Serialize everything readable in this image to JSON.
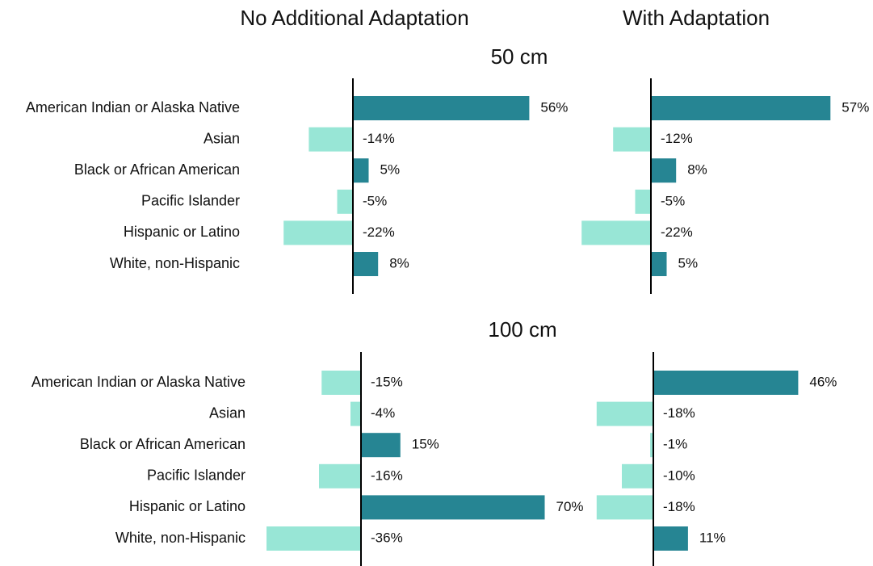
{
  "column_titles": [
    "No Additional Adaptation",
    "With Adaptation"
  ],
  "row_titles": [
    "50 cm",
    "100 cm"
  ],
  "chart_data": [
    {
      "type": "bar",
      "orientation": "horizontal",
      "categories": [
        "American Indian or Alaska Native",
        "Asian",
        "Black or African American",
        "Pacific Islander",
        "Hispanic or Latino",
        "White, non-Hispanic"
      ],
      "values": [
        56,
        -14,
        5,
        -5,
        -22,
        8
      ],
      "value_labels": [
        "56%",
        "-14%",
        "5%",
        "-5%",
        "-22%",
        "8%"
      ],
      "xlim": [
        -30,
        70
      ],
      "positive_color": "#268593",
      "negative_color": "#98e6d6"
    },
    {
      "type": "bar",
      "orientation": "horizontal",
      "values": [
        57,
        -12,
        8,
        -5,
        -22,
        5
      ],
      "value_labels": [
        "57%",
        "-12%",
        "8%",
        "-5%",
        "-22%",
        "5%"
      ],
      "xlim": [
        -30,
        70
      ],
      "positive_color": "#268593",
      "negative_color": "#98e6d6"
    },
    {
      "type": "bar",
      "orientation": "horizontal",
      "categories": [
        "American Indian or Alaska Native",
        "Asian",
        "Black or African American",
        "Pacific Islander",
        "Hispanic or Latino",
        "White, non-Hispanic"
      ],
      "values": [
        -15,
        -4,
        15,
        -16,
        70,
        -36
      ],
      "value_labels": [
        "-15%",
        "-4%",
        "15%",
        "-16%",
        "70%",
        "-36%"
      ],
      "xlim": [
        -40,
        80
      ],
      "positive_color": "#268593",
      "negative_color": "#98e6d6"
    },
    {
      "type": "bar",
      "orientation": "horizontal",
      "values": [
        46,
        -18,
        -1,
        -10,
        -18,
        11
      ],
      "value_labels": [
        "46%",
        "-18%",
        "-1%",
        "-10%",
        "-18%",
        "11%"
      ],
      "xlim": [
        -30,
        70
      ],
      "positive_color": "#268593",
      "negative_color": "#98e6d6"
    }
  ]
}
